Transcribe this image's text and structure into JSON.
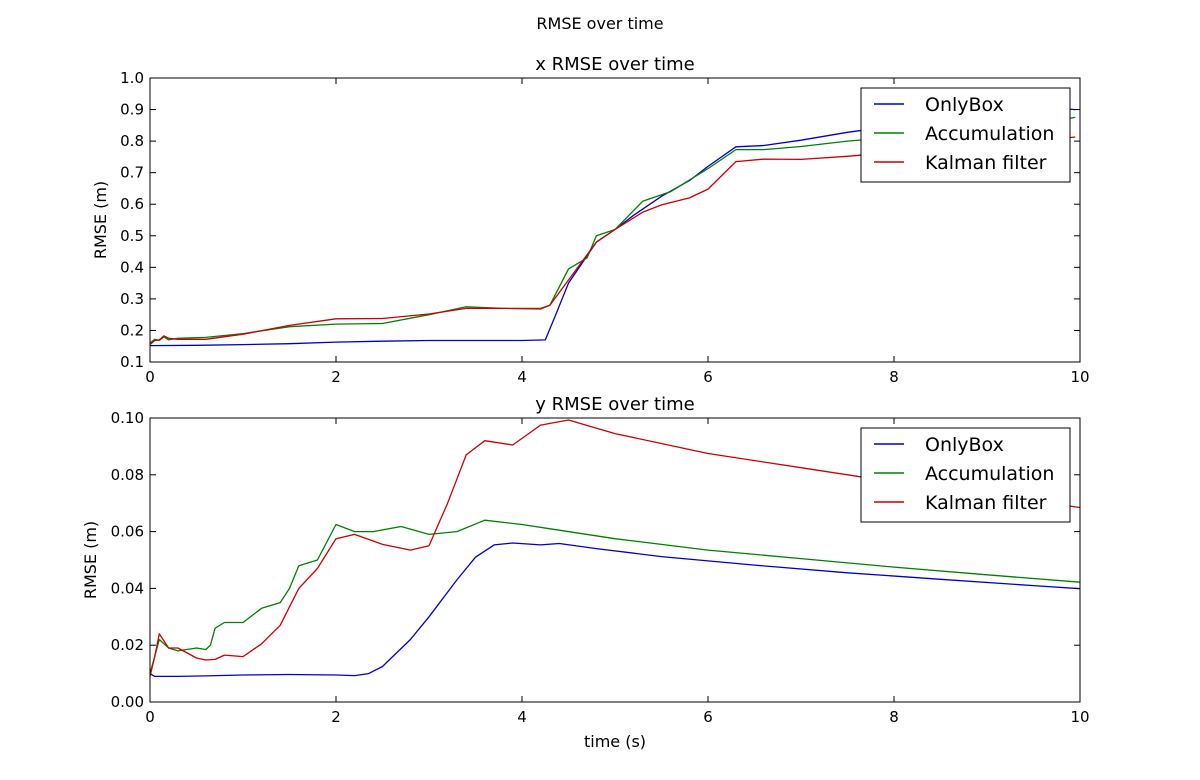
{
  "figure": {
    "suptitle": "RMSE over time",
    "xlabel": "time (s)"
  },
  "chart_data": [
    {
      "type": "line",
      "title": "x RMSE over time",
      "xlabel": "",
      "ylabel": "RMSE (m)",
      "xlim": [
        0,
        10
      ],
      "ylim": [
        0.1,
        1.0
      ],
      "xticks": [
        "0",
        "2",
        "4",
        "6",
        "8",
        "10"
      ],
      "yticks": [
        "0.1",
        "0.2",
        "0.3",
        "0.4",
        "0.5",
        "0.6",
        "0.7",
        "0.8",
        "0.9",
        "1.0"
      ],
      "grid": false,
      "legend_position": "top-right",
      "series": [
        {
          "name": "OnlyBox",
          "color": "#0000cc",
          "x": [
            0,
            0.5,
            1.0,
            1.5,
            2.0,
            2.5,
            3.0,
            3.5,
            4.0,
            4.25,
            4.35,
            4.5,
            4.8,
            5.0,
            5.2,
            5.5,
            5.8,
            6.0,
            6.3,
            6.6,
            7.0,
            7.5,
            8.0,
            8.5,
            9.0,
            9.5,
            9.85,
            9.95
          ],
          "y": [
            0.152,
            0.153,
            0.155,
            0.158,
            0.163,
            0.166,
            0.168,
            0.168,
            0.168,
            0.17,
            0.24,
            0.35,
            0.48,
            0.52,
            0.565,
            0.625,
            0.675,
            0.72,
            0.782,
            0.786,
            0.803,
            0.828,
            0.848,
            0.862,
            0.875,
            0.887,
            0.902,
            0.9
          ]
        },
        {
          "name": "Accumulation",
          "color": "#008000",
          "x": [
            0,
            0.05,
            0.1,
            0.15,
            0.2,
            0.3,
            0.6,
            1.0,
            1.5,
            2.0,
            2.5,
            3.0,
            3.4,
            3.8,
            4.2,
            4.3,
            4.5,
            4.7,
            4.8,
            5.0,
            5.3,
            5.6,
            6.0,
            6.3,
            6.6,
            7.0,
            7.5,
            8.0,
            8.5,
            9.0,
            9.5,
            9.95
          ],
          "y": [
            0.16,
            0.172,
            0.168,
            0.18,
            0.17,
            0.175,
            0.178,
            0.19,
            0.212,
            0.22,
            0.222,
            0.25,
            0.275,
            0.27,
            0.27,
            0.28,
            0.395,
            0.43,
            0.5,
            0.52,
            0.61,
            0.64,
            0.713,
            0.773,
            0.773,
            0.783,
            0.8,
            0.812,
            0.825,
            0.84,
            0.855,
            0.875
          ]
        },
        {
          "name": "Kalman filter",
          "color": "#cc0000",
          "x": [
            0,
            0.05,
            0.1,
            0.15,
            0.2,
            0.3,
            0.6,
            1.0,
            1.5,
            2.0,
            2.5,
            3.0,
            3.4,
            3.8,
            4.2,
            4.3,
            4.5,
            4.8,
            5.0,
            5.3,
            5.5,
            5.8,
            6.0,
            6.3,
            6.6,
            7.0,
            7.5,
            8.0,
            8.5,
            9.0,
            9.5,
            9.95
          ],
          "y": [
            0.155,
            0.168,
            0.17,
            0.183,
            0.175,
            0.172,
            0.172,
            0.188,
            0.216,
            0.237,
            0.238,
            0.252,
            0.27,
            0.27,
            0.268,
            0.28,
            0.36,
            0.48,
            0.52,
            0.575,
            0.598,
            0.62,
            0.648,
            0.735,
            0.743,
            0.742,
            0.752,
            0.765,
            0.778,
            0.79,
            0.8,
            0.813
          ]
        }
      ]
    },
    {
      "type": "line",
      "title": "y RMSE over time",
      "xlabel": "time (s)",
      "ylabel": "RMSE (m)",
      "xlim": [
        0,
        10
      ],
      "ylim": [
        0.0,
        0.1
      ],
      "xticks": [
        "0",
        "2",
        "4",
        "6",
        "8",
        "10"
      ],
      "yticks": [
        "0.00",
        "0.02",
        "0.04",
        "0.06",
        "0.08",
        "0.10"
      ],
      "grid": false,
      "legend_position": "top-right",
      "series": [
        {
          "name": "OnlyBox",
          "color": "#0000cc",
          "x": [
            0,
            0.05,
            0.3,
            0.6,
            1.0,
            1.5,
            2.0,
            2.2,
            2.35,
            2.5,
            2.8,
            3.0,
            3.3,
            3.5,
            3.7,
            3.9,
            4.2,
            4.4,
            4.8,
            5.5,
            6.5,
            7.5,
            8.5,
            9.5,
            10.0
          ],
          "y": [
            0.01,
            0.009,
            0.009,
            0.0092,
            0.0095,
            0.0097,
            0.0095,
            0.0093,
            0.01,
            0.0125,
            0.022,
            0.03,
            0.043,
            0.051,
            0.0553,
            0.056,
            0.0553,
            0.0558,
            0.054,
            0.0512,
            0.0482,
            0.0455,
            0.0432,
            0.041,
            0.0399
          ]
        },
        {
          "name": "Accumulation",
          "color": "#008000",
          "x": [
            0,
            0.05,
            0.1,
            0.2,
            0.3,
            0.5,
            0.6,
            0.65,
            0.7,
            0.8,
            1.0,
            1.2,
            1.4,
            1.5,
            1.6,
            1.8,
            2.0,
            2.2,
            2.4,
            2.7,
            3.0,
            3.3,
            3.6,
            4.0,
            4.4,
            5.0,
            6.0,
            7.0,
            8.0,
            9.0,
            10.0
          ],
          "y": [
            0.01,
            0.016,
            0.022,
            0.019,
            0.018,
            0.019,
            0.0185,
            0.02,
            0.026,
            0.028,
            0.028,
            0.033,
            0.035,
            0.04,
            0.048,
            0.05,
            0.0625,
            0.06,
            0.06,
            0.0618,
            0.059,
            0.06,
            0.064,
            0.0625,
            0.0605,
            0.0575,
            0.0535,
            0.0505,
            0.0475,
            0.0448,
            0.0422
          ]
        },
        {
          "name": "Kalman filter",
          "color": "#cc0000",
          "x": [
            0,
            0.05,
            0.1,
            0.2,
            0.3,
            0.5,
            0.6,
            0.7,
            0.8,
            1.0,
            1.2,
            1.4,
            1.6,
            1.8,
            2.0,
            2.2,
            2.5,
            2.8,
            3.0,
            3.2,
            3.4,
            3.6,
            3.9,
            4.2,
            4.5,
            5.0,
            6.0,
            7.0,
            8.0,
            9.0,
            10.0
          ],
          "y": [
            0.009,
            0.016,
            0.024,
            0.019,
            0.019,
            0.0155,
            0.0148,
            0.015,
            0.0165,
            0.016,
            0.0205,
            0.027,
            0.04,
            0.047,
            0.0575,
            0.059,
            0.0555,
            0.0535,
            0.055,
            0.07,
            0.087,
            0.092,
            0.0905,
            0.0975,
            0.0993,
            0.0945,
            0.0875,
            0.0825,
            0.0775,
            0.073,
            0.0685
          ]
        }
      ]
    }
  ]
}
